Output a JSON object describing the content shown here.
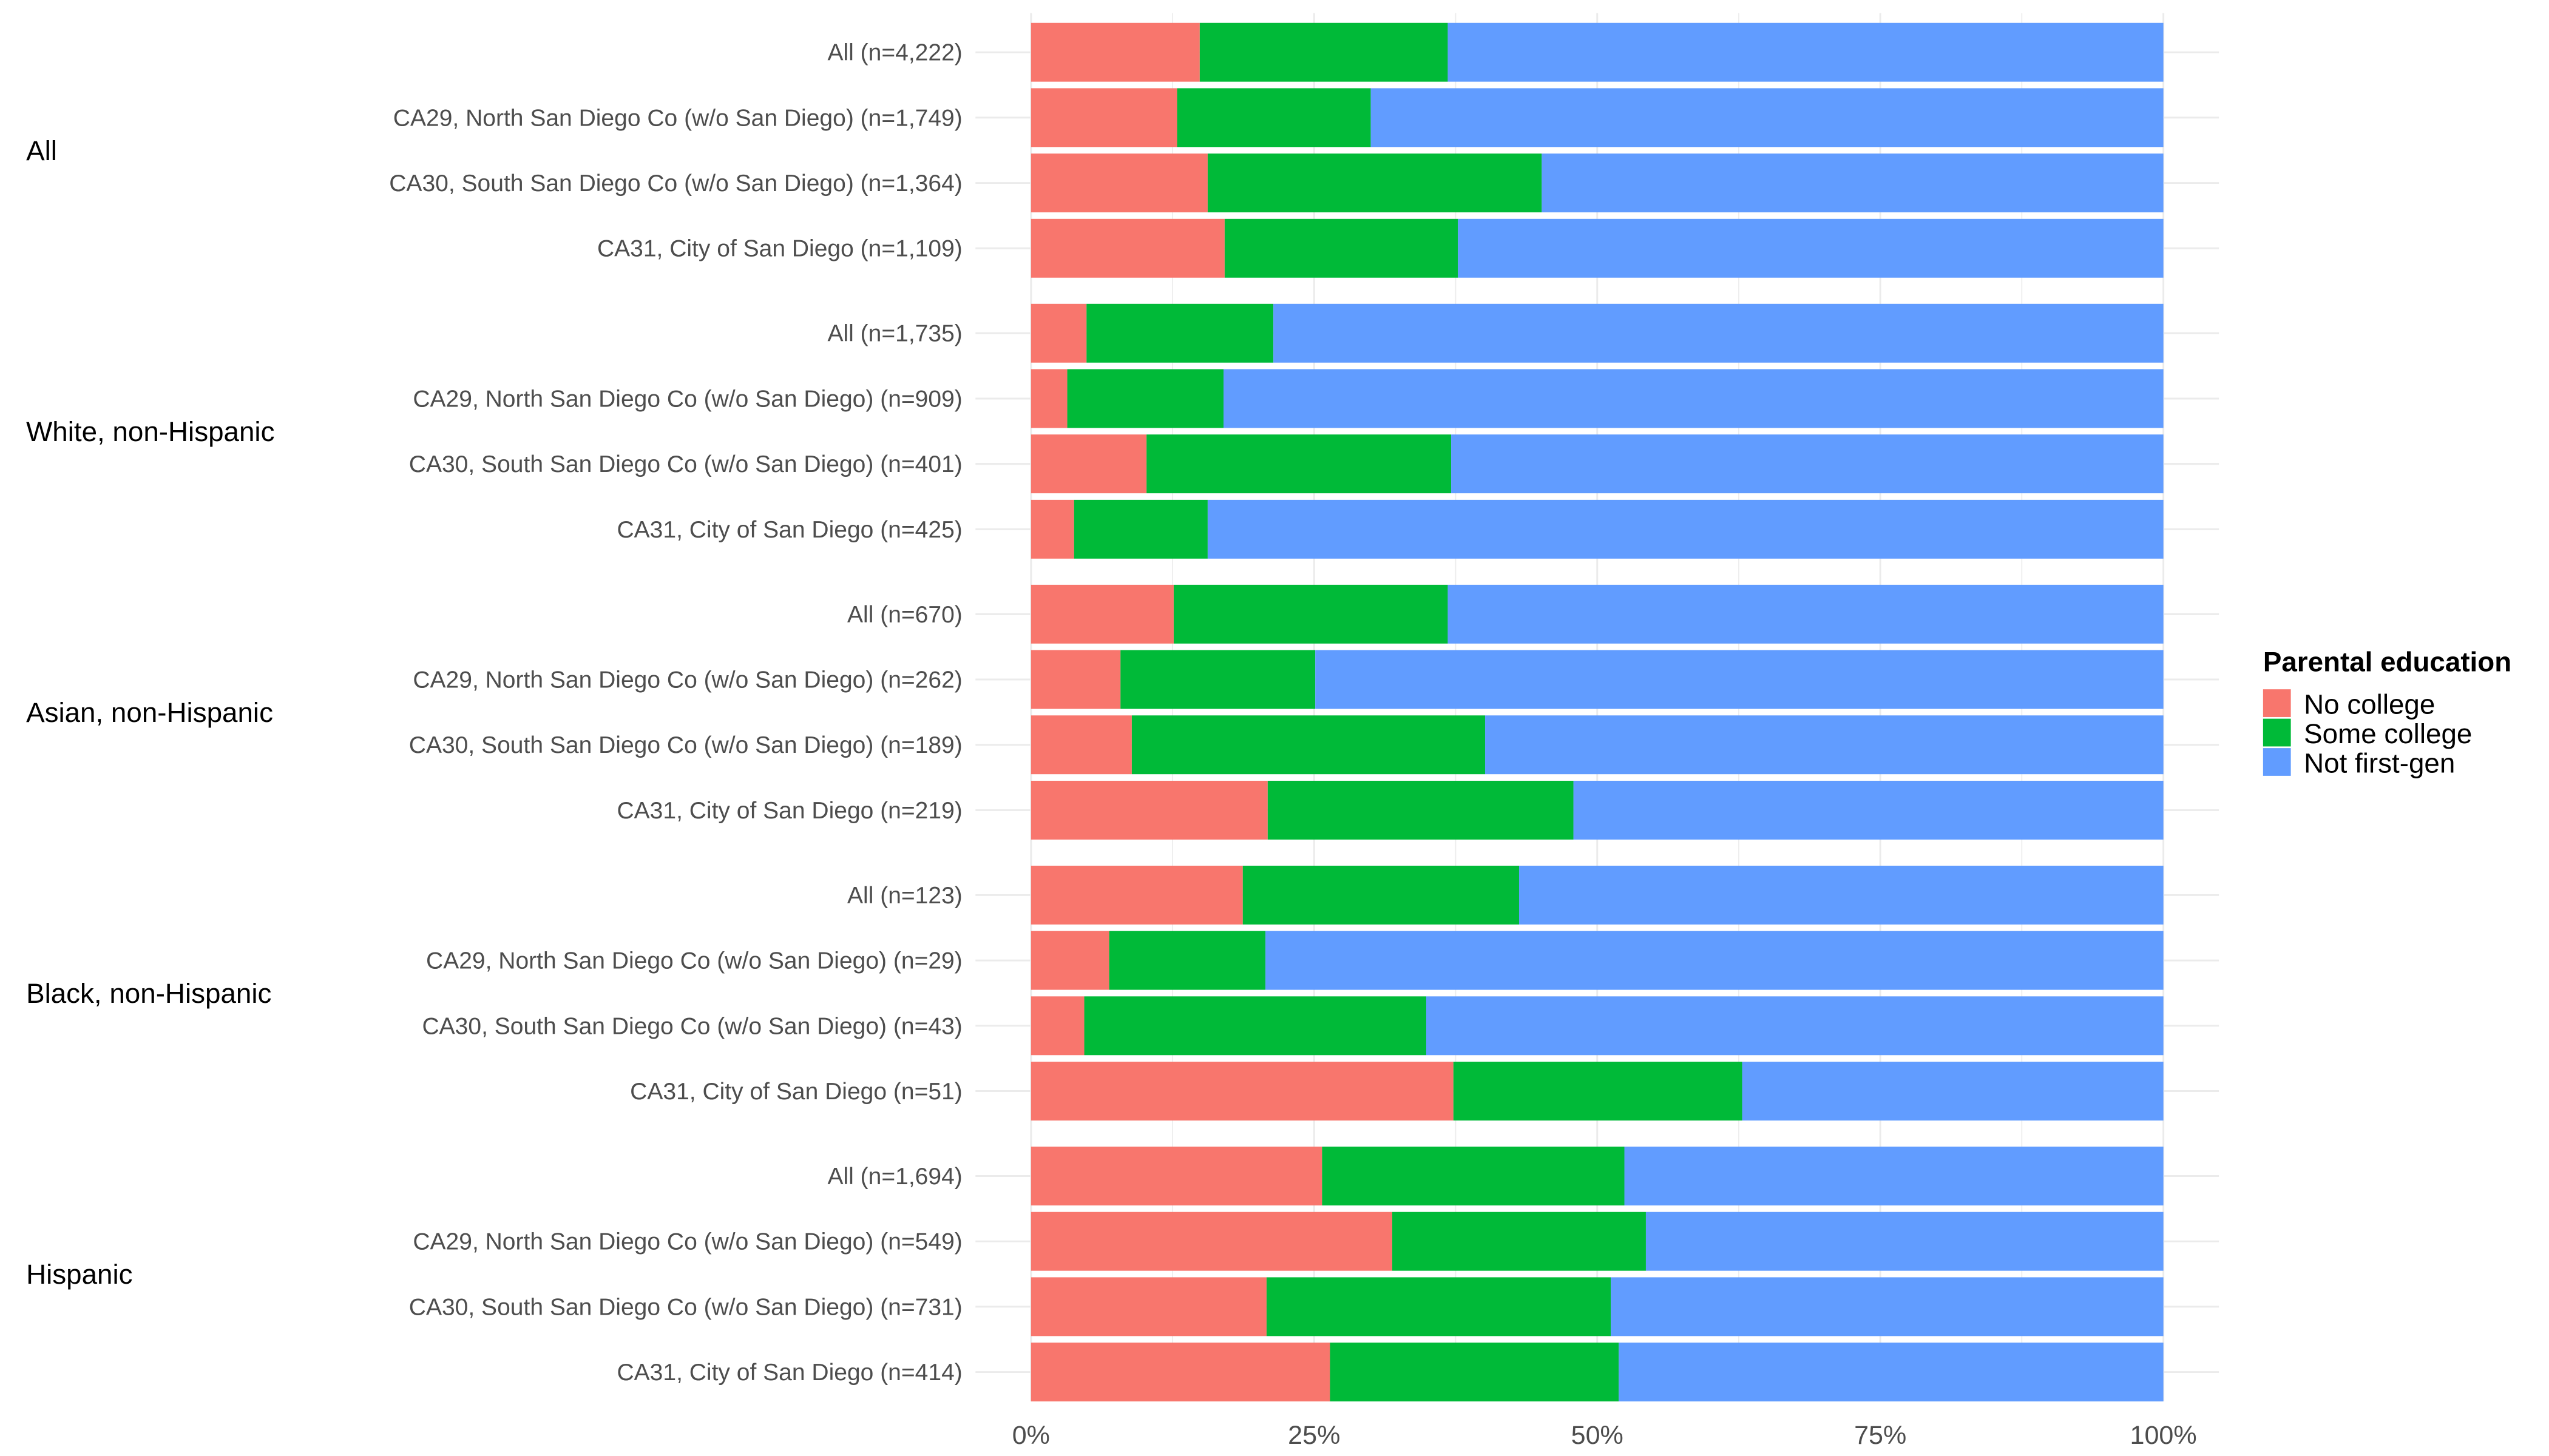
{
  "chart_data": {
    "type": "bar",
    "orientation": "horizontal",
    "stacked": "percent",
    "xlim": [
      0,
      100
    ],
    "x_ticks": [
      "0%",
      "25%",
      "50%",
      "75%",
      "100%"
    ],
    "grid": true,
    "legend": {
      "title": "Parental education",
      "placement": "right",
      "entries": [
        "No college",
        "Some college",
        "Not first-gen"
      ]
    },
    "colors": {
      "No college": "#F8766D",
      "Some college": "#00BA38",
      "Not first-gen": "#619CFF"
    },
    "groups": [
      {
        "label": "All",
        "rows": [
          {
            "label": "All (n=4,222)",
            "values": [
              14.9,
              21.9,
              63.2
            ]
          },
          {
            "label": "CA29, North San Diego Co (w/o San Diego) (n=1,749)",
            "values": [
              12.9,
              17.1,
              70.0
            ]
          },
          {
            "label": "CA30, South San Diego Co (w/o San Diego) (n=1,364)",
            "values": [
              15.6,
              29.5,
              54.9
            ]
          },
          {
            "label": "CA31, City of San Diego (n=1,109)",
            "values": [
              17.1,
              20.6,
              62.3
            ]
          }
        ]
      },
      {
        "label": "White, non-Hispanic",
        "rows": [
          {
            "label": "All (n=1,735)",
            "values": [
              4.9,
              16.5,
              78.6
            ]
          },
          {
            "label": "CA29, North San Diego Co (w/o San Diego) (n=909)",
            "values": [
              3.2,
              13.8,
              83.0
            ]
          },
          {
            "label": "CA30, South San Diego Co (w/o San Diego) (n=401)",
            "values": [
              10.2,
              26.9,
              62.9
            ]
          },
          {
            "label": "CA31, City of San Diego (n=425)",
            "values": [
              3.8,
              11.8,
              84.4
            ]
          }
        ]
      },
      {
        "label": "Asian, non-Hispanic",
        "rows": [
          {
            "label": "All (n=670)",
            "values": [
              12.6,
              24.2,
              63.2
            ]
          },
          {
            "label": "CA29, North San Diego Co (w/o San Diego) (n=262)",
            "values": [
              7.9,
              17.2,
              74.9
            ]
          },
          {
            "label": "CA30, South San Diego Co (w/o San Diego) (n=189)",
            "values": [
              8.9,
              31.2,
              59.9
            ]
          },
          {
            "label": "CA31, City of San Diego (n=219)",
            "values": [
              20.9,
              27.0,
              52.1
            ]
          }
        ]
      },
      {
        "label": "Black, non-Hispanic",
        "rows": [
          {
            "label": "All (n=123)",
            "values": [
              18.7,
              24.4,
              56.9
            ]
          },
          {
            "label": "CA29, North San Diego Co (w/o San Diego) (n=29)",
            "values": [
              6.9,
              13.8,
              79.3
            ]
          },
          {
            "label": "CA30, South San Diego Co (w/o San Diego) (n=43)",
            "values": [
              4.7,
              30.2,
              65.1
            ]
          },
          {
            "label": "CA31, City of San Diego (n=51)",
            "values": [
              37.3,
              25.5,
              37.2
            ]
          }
        ]
      },
      {
        "label": "Hispanic",
        "rows": [
          {
            "label": "All (n=1,694)",
            "values": [
              25.7,
              26.7,
              47.6
            ]
          },
          {
            "label": "CA29, North San Diego Co (w/o San Diego) (n=549)",
            "values": [
              31.9,
              22.4,
              45.7
            ]
          },
          {
            "label": "CA30, South San Diego Co (w/o San Diego) (n=731)",
            "values": [
              20.8,
              30.4,
              48.8
            ]
          },
          {
            "label": "CA31, City of San Diego (n=414)",
            "values": [
              26.4,
              25.5,
              48.1
            ]
          }
        ]
      }
    ]
  }
}
